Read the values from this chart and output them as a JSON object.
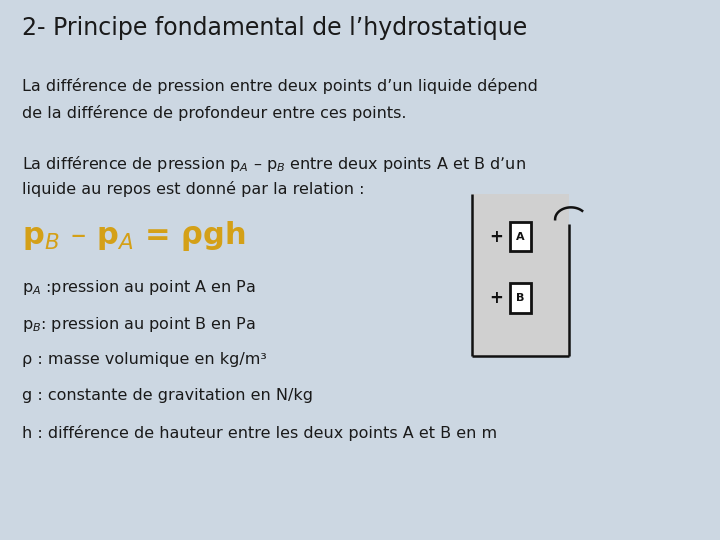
{
  "bg_color": "#ccd7e2",
  "title": "2- Principe fondamental de l’hydrostatique",
  "title_fontsize": 17,
  "title_color": "#1a1a1a",
  "body_fontsize": 11.5,
  "body_color": "#1a1a1a",
  "formula_fontsize": 22,
  "formula_color": "#d4a017",
  "para1_line1": "La différence de pression entre deux points d’un liquide dépend",
  "para1_line2": "de la différence de profondeur entre ces points.",
  "para2_line1": "La différence de pression p$_A$ – p$_B$ entre deux points A et B d’un",
  "para2_line2": "liquide au repos est donné par la relation :",
  "formula": "p$_B$ – p$_A$ = ρgh",
  "legends": [
    "p$_A$ :pression au point A en Pa",
    "p$_B$: pression au point B en Pa",
    "ρ : masse volumique en kg/m³",
    "g : constante de gravitation en N/kg",
    "h : différence de hauteur entre les deux points A et B en m"
  ],
  "liquid_color": "#d0d0d0",
  "container_border": "#111111"
}
